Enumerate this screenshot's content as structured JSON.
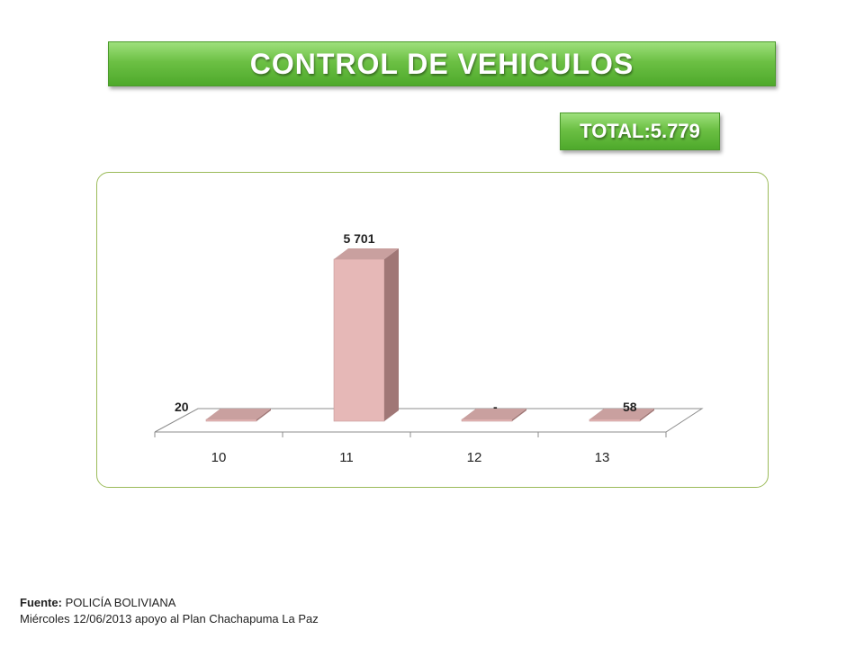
{
  "header": {
    "title": "CONTROL DE VEHICULOS",
    "total": "TOTAL:5.779"
  },
  "chart_data": {
    "type": "bar",
    "style": "3d-column",
    "categories": [
      "10",
      "11",
      "12",
      "13"
    ],
    "values": [
      20,
      5701,
      0,
      58
    ],
    "data_labels": [
      "20",
      "5 701",
      "-",
      "58"
    ],
    "ylim": [
      0,
      5701
    ],
    "grid": false,
    "legend": "none",
    "colors": {
      "bar_front": "#e6b8b7",
      "bar_top": "#c9a09f",
      "bar_side": "#a07776",
      "floor": "#ffffff",
      "axis": "#8c8c8c"
    }
  },
  "footer": {
    "source_label": "Fuente:",
    "source_value": "POLICÍA BOLIVIANA",
    "note": "Miércoles 12/06/2013 apoyo al Plan Chachapuma La Paz"
  }
}
